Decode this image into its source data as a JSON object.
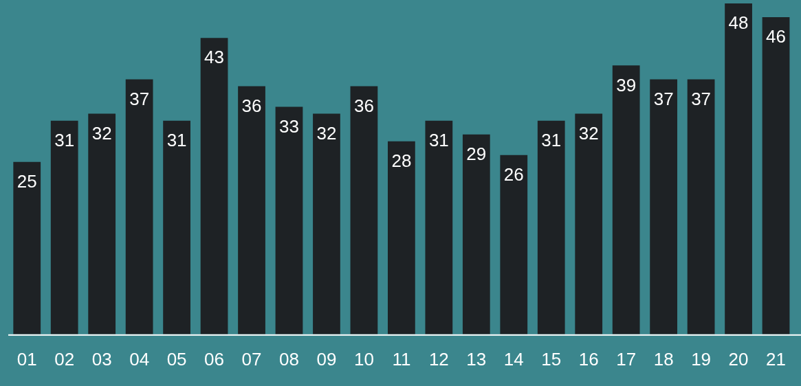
{
  "chart_data": {
    "type": "bar",
    "categories": [
      "01",
      "02",
      "03",
      "04",
      "05",
      "06",
      "07",
      "08",
      "09",
      "10",
      "11",
      "12",
      "13",
      "14",
      "15",
      "16",
      "17",
      "18",
      "19",
      "20",
      "21"
    ],
    "values": [
      25,
      31,
      32,
      37,
      31,
      43,
      36,
      33,
      32,
      36,
      28,
      31,
      29,
      26,
      31,
      32,
      39,
      37,
      37,
      48,
      46
    ],
    "color": "#1e2225",
    "data_labels": true,
    "grid": false,
    "legend": false
  }
}
